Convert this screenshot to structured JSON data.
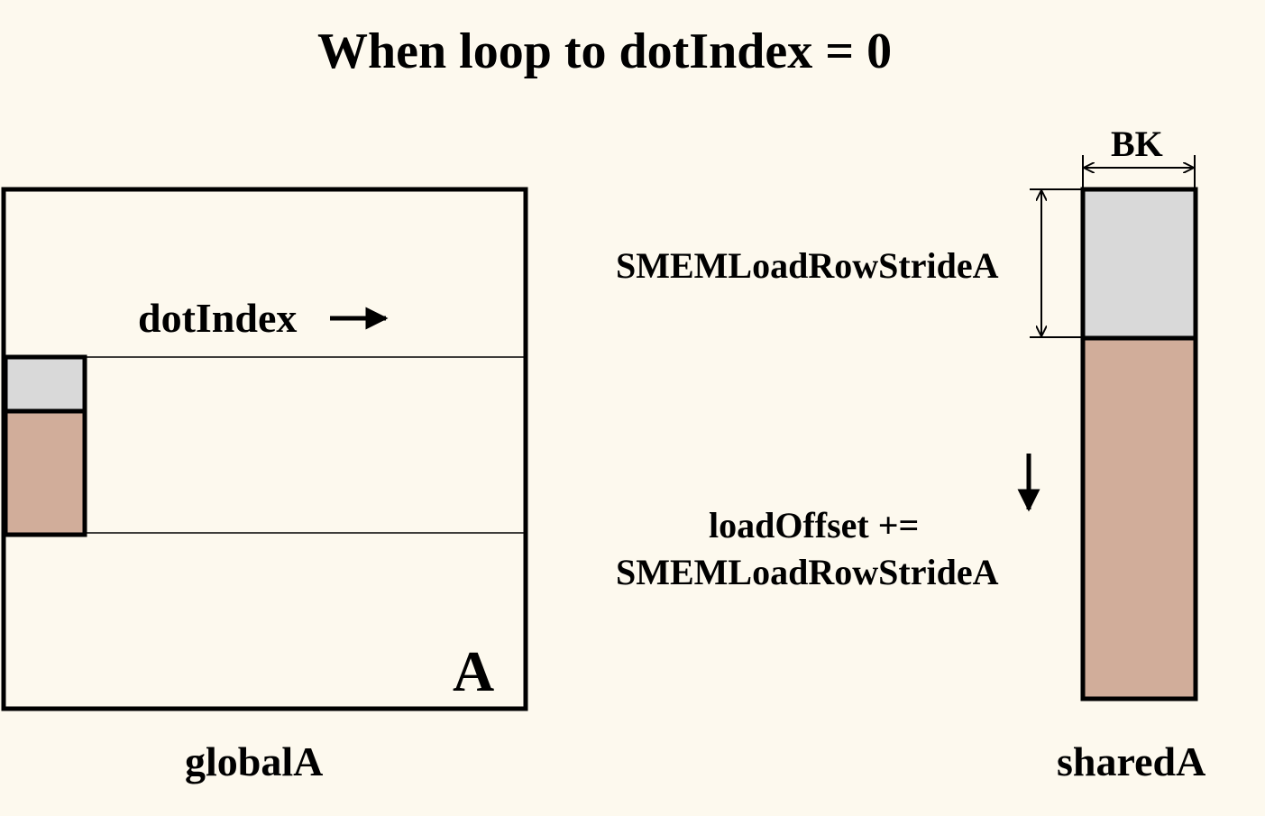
{
  "title": "When loop to dotIndex = 0",
  "global": {
    "matrix_letter": "A",
    "caption": "globalA",
    "dot_index_label": "dotIndex"
  },
  "shared": {
    "caption": "sharedA",
    "width_label": "BK",
    "stride_label": "SMEMLoadRowStrideA",
    "offset_line1": "loadOffset +=",
    "offset_line2": "SMEMLoadRowStrideA"
  },
  "colors": {
    "background": "#fdf9ee",
    "loaded_tile": "#d9d9d9",
    "pending_tile": "#d1ad9a",
    "stroke": "#000000"
  }
}
